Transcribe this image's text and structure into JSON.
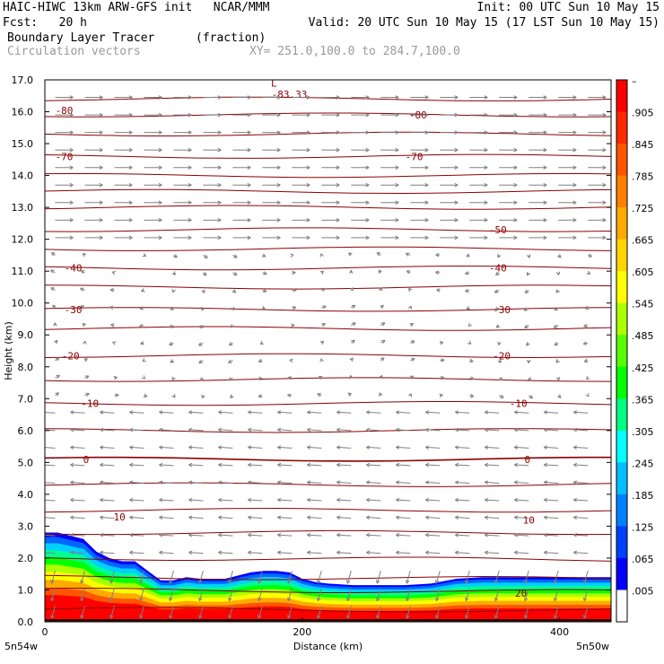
{
  "header": {
    "line1_left": "HAIC-HIWC 13km ARW-GFS init   NCAR/MMM",
    "line1_right": "Init: 00 UTC Sun 10 May 15",
    "line2_left": "Fcst:   20 h",
    "line2_right": "Valid: 20 UTC Sun 10 May 15 (17 LST Sun 10 May 15)",
    "field_name": "Boundary Layer Tracer",
    "field_units": "(fraction)",
    "vector_label": "Circulation vectors",
    "xy_range": "XY= 251.0,100.0 to 284.7,100.0"
  },
  "chart_data": {
    "type": "area",
    "xlabel": "Distance (km)",
    "ylabel": "Height (km)",
    "xlim": [
      0,
      440
    ],
    "ylim": [
      0,
      17
    ],
    "x_ticks": [
      "0",
      "200",
      "400"
    ],
    "y_ticks": [
      "0.0",
      "1.0",
      "2.0",
      "3.0",
      "4.0",
      "5.0",
      "6.0",
      "7.0",
      "8.0",
      "9.0",
      "10.0",
      "11.0",
      "12.0",
      "13.0",
      "14.0",
      "15.0",
      "16.0",
      "17.0"
    ],
    "x_endpoint_labels": {
      "left": "5n54w",
      "right": "5n50w"
    },
    "colorbar_labels": [
      "–",
      ".905",
      ".845",
      ".785",
      ".725",
      ".665",
      ".605",
      ".545",
      ".485",
      ".425",
      ".365",
      ".305",
      ".245",
      ".185",
      ".125",
      ".065",
      ".005"
    ],
    "colorbar_colors": [
      "#ff0000",
      "#ff2a00",
      "#ff5500",
      "#ff8000",
      "#ffaa00",
      "#ffd500",
      "#ffff00",
      "#aaff00",
      "#55ff00",
      "#00ff00",
      "#00ff80",
      "#00ffff",
      "#00bfff",
      "#0080ff",
      "#0040ff",
      "#0000ff",
      "#ffffff"
    ],
    "tracer_top_profile": {
      "x_km": [
        0,
        10,
        20,
        30,
        40,
        50,
        60,
        70,
        80,
        90,
        100,
        110,
        120,
        140,
        160,
        170,
        180,
        190,
        200,
        210,
        220,
        240,
        260,
        280,
        300,
        320,
        340,
        360,
        380,
        400,
        420,
        440
      ],
      "height_km": [
        2.8,
        2.8,
        2.7,
        2.6,
        2.2,
        2.0,
        1.9,
        1.9,
        1.6,
        1.3,
        1.3,
        1.4,
        1.35,
        1.35,
        1.55,
        1.6,
        1.6,
        1.55,
        1.35,
        1.25,
        1.2,
        1.15,
        1.15,
        1.15,
        1.2,
        1.35,
        1.4,
        1.4,
        1.4,
        1.4,
        1.4,
        1.4
      ]
    },
    "temperature_contours": {
      "line_color": "#8b0000",
      "labels": [
        {
          "text": "-83.33",
          "x": 190,
          "y": 16.55
        },
        {
          "text": "L",
          "x": 178,
          "y": 16.9
        },
        {
          "text": "-80",
          "x": 15,
          "y": 16.05
        },
        {
          "text": "-80",
          "x": 290,
          "y": 15.9
        },
        {
          "text": "-70",
          "x": 15,
          "y": 14.6
        },
        {
          "text": "-70",
          "x": 287,
          "y": 14.6
        },
        {
          "text": "-50",
          "x": 352,
          "y": 12.3
        },
        {
          "text": "-40",
          "x": 22,
          "y": 11.1
        },
        {
          "text": "-40",
          "x": 352,
          "y": 11.1
        },
        {
          "text": "-30",
          "x": 22,
          "y": 9.8
        },
        {
          "text": "-30",
          "x": 355,
          "y": 9.8
        },
        {
          "text": "-20",
          "x": 20,
          "y": 8.35
        },
        {
          "text": "-20",
          "x": 355,
          "y": 8.35
        },
        {
          "text": "-10",
          "x": 35,
          "y": 6.85
        },
        {
          "text": "-10",
          "x": 368,
          "y": 6.85
        },
        {
          "text": "0",
          "x": 32,
          "y": 5.1
        },
        {
          "text": "0",
          "x": 375,
          "y": 5.1
        },
        {
          "text": "10",
          "x": 58,
          "y": 3.3
        },
        {
          "text": "10",
          "x": 376,
          "y": 3.2
        },
        {
          "text": "20",
          "x": 370,
          "y": 0.9
        }
      ],
      "levels_km": [
        0.4,
        1.0,
        1.4,
        2.0,
        2.8,
        3.5,
        4.3,
        5.1,
        6.0,
        6.85,
        7.6,
        8.35,
        9.2,
        9.8,
        10.5,
        11.1,
        11.7,
        12.3,
        13.0,
        13.5,
        14.0,
        14.6,
        15.3,
        15.9,
        16.4
      ]
    },
    "wind_vectors": "circulation vectors: strong westerly (rightward) above ~12 km, weak/mixed 7–12 km, easterly (leftward) below ~7 km, downward near surface"
  }
}
